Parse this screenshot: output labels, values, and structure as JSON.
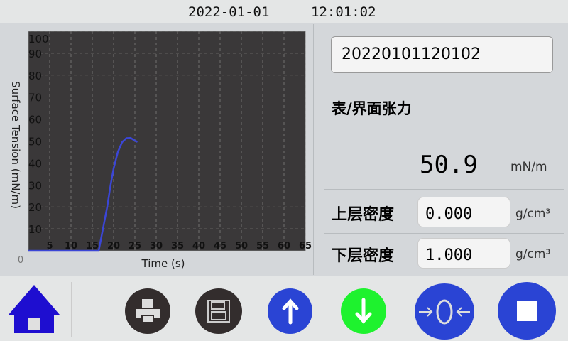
{
  "header": {
    "date": "2022-01-01",
    "time": "12:01:02"
  },
  "chart_data": {
    "type": "line",
    "xlabel": "Time (s)",
    "ylabel": "Surface Tension (mN/m)",
    "xlim": [
      0,
      65
    ],
    "ylim": [
      0,
      100
    ],
    "xticks": [
      5,
      10,
      15,
      20,
      25,
      30,
      35,
      40,
      45,
      50,
      55,
      60,
      65
    ],
    "yticks": [
      10,
      20,
      30,
      40,
      50,
      60,
      70,
      80,
      90,
      100
    ],
    "origin_label": "0",
    "grid": true,
    "background": "#3a3839",
    "line_color": "#3b46d6",
    "x": [
      0,
      16.5,
      17.5,
      18.5,
      19.3,
      20,
      21,
      22,
      23,
      24,
      25,
      25.6
    ],
    "y": [
      0,
      0,
      10,
      20,
      30,
      37.5,
      45,
      49.5,
      51.3,
      51.4,
      50.2,
      49.6
    ]
  },
  "panel": {
    "sample_id": "20220101120102",
    "title": "表/界面张力",
    "value": "50.9",
    "value_unit": "mN/m",
    "upper_label": "上层密度",
    "upper_value": "0.000",
    "upper_unit": "g/cm³",
    "lower_label": "下层密度",
    "lower_value": "1.000",
    "lower_unit": "g/cm³"
  },
  "toolbar": {
    "icons": [
      "home-icon",
      "printer-icon",
      "save-icon",
      "arrow-up-icon",
      "arrow-down-icon",
      "zero-calibrate-icon",
      "stop-icon"
    ],
    "colors": {
      "home": "#1e0ed0",
      "dark": "#332d2d",
      "blue": "#2a44d4",
      "green": "#1ef22e"
    }
  }
}
